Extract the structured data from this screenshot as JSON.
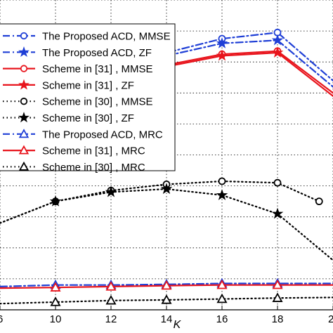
{
  "chart_data": {
    "type": "line",
    "xlabel": "K",
    "ylabel": "",
    "title": "",
    "x_ticks": [
      10,
      12,
      14,
      16,
      18
    ],
    "x_tick_labels": [
      "10",
      "12",
      "14",
      "16",
      "18"
    ],
    "edge_tick_labels": [
      "6",
      "2"
    ],
    "xlim": [
      8,
      20
    ],
    "ylim": [
      0,
      10
    ],
    "grid": true,
    "legend_position": "top-left",
    "series": [
      {
        "name": "The Proposed ACD, MMSE",
        "color": "#1f3fd6",
        "dash": "dashdot",
        "marker": "circle",
        "x": [
          8,
          10,
          12,
          14,
          16,
          18,
          20
        ],
        "y": [
          6.2,
          7.3,
          7.9,
          8.3,
          8.75,
          8.95,
          7.4
        ]
      },
      {
        "name": "The Proposed ACD, ZF",
        "color": "#1f3fd6",
        "dash": "dashdot",
        "marker": "star",
        "x": [
          8,
          10,
          12,
          14,
          16,
          18,
          20
        ],
        "y": [
          6.0,
          7.2,
          7.8,
          8.2,
          8.6,
          8.7,
          7.2
        ]
      },
      {
        "name": "Scheme in [31] , MMSE",
        "color": "#e8141c",
        "dash": "solid",
        "marker": "circle",
        "x": [
          8,
          10,
          12,
          14,
          16,
          18,
          20
        ],
        "y": [
          6.1,
          6.9,
          7.55,
          7.9,
          8.25,
          8.35,
          7.0
        ]
      },
      {
        "name": "Scheme in [31] , ZF",
        "color": "#e8141c",
        "dash": "solid",
        "marker": "star",
        "x": [
          8,
          10,
          12,
          14,
          16,
          18,
          20
        ],
        "y": [
          6.05,
          6.85,
          7.5,
          7.85,
          8.2,
          8.3,
          6.9
        ]
      },
      {
        "name": "Scheme in [30] , MMSE",
        "color": "#000000",
        "dash": "dotted",
        "marker": "circle",
        "x": [
          8,
          10,
          12,
          14,
          16,
          18,
          19.5
        ],
        "y": [
          2.8,
          3.5,
          3.85,
          4.05,
          4.15,
          4.1,
          3.5
        ]
      },
      {
        "name": "Scheme in [30] , ZF",
        "color": "#000000",
        "dash": "dotted",
        "marker": "star",
        "x": [
          8,
          10,
          12,
          14,
          16,
          18,
          20
        ],
        "y": [
          2.8,
          3.5,
          3.8,
          3.9,
          3.7,
          3.1,
          1.6
        ]
      },
      {
        "name": "The Proposed ACD, MRC",
        "color": "#1f3fd6",
        "dash": "dashdot",
        "marker": "triangle",
        "x": [
          8,
          10,
          12,
          14,
          16,
          18,
          20
        ],
        "y": [
          0.75,
          0.8,
          0.8,
          0.82,
          0.85,
          0.85,
          0.85
        ]
      },
      {
        "name": "Scheme in [31] , MRC",
        "color": "#e8141c",
        "dash": "solid",
        "marker": "triangle",
        "x": [
          8,
          10,
          12,
          14,
          16,
          18,
          20
        ],
        "y": [
          0.7,
          0.72,
          0.75,
          0.78,
          0.8,
          0.8,
          0.8
        ]
      },
      {
        "name": "Scheme in [30] , MRC",
        "color": "#000000",
        "dash": "dotted",
        "marker": "triangle",
        "x": [
          8,
          10,
          12,
          14,
          16,
          18,
          20
        ],
        "y": [
          0.2,
          0.25,
          0.3,
          0.32,
          0.35,
          0.38,
          0.4
        ]
      }
    ]
  }
}
